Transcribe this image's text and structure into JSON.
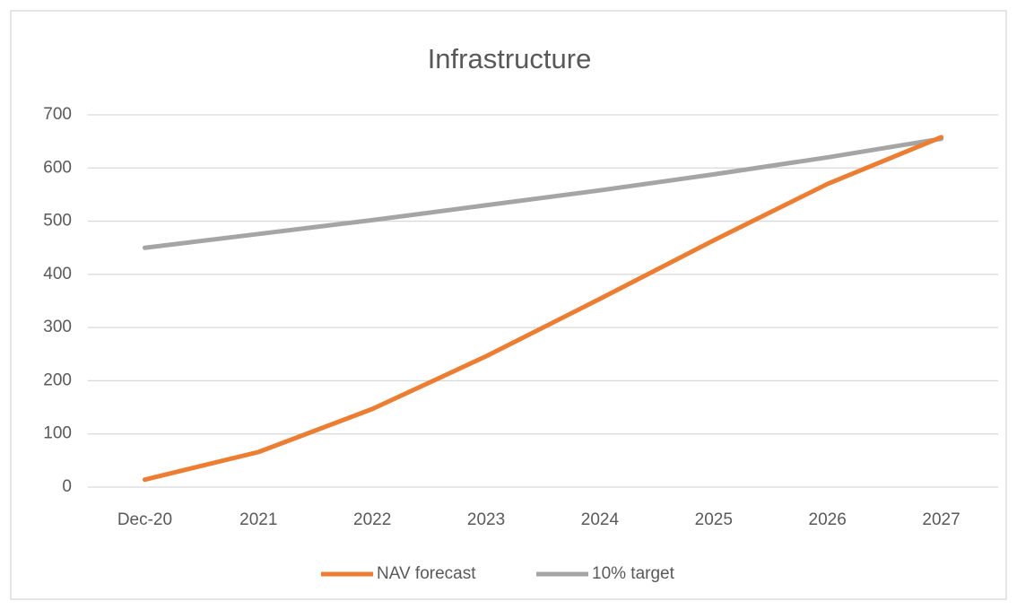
{
  "chart_data": {
    "type": "line",
    "title": "Infrastructure",
    "categories": [
      "Dec-20",
      "2021",
      "2022",
      "2023",
      "2024",
      "2025",
      "2026",
      "2027"
    ],
    "series": [
      {
        "name": "NAV forecast",
        "color": "#ed7d31",
        "values": [
          14,
          66,
          147,
          246,
          354,
          464,
          570,
          658
        ]
      },
      {
        "name": "10% target",
        "color": "#a5a5a5",
        "values": [
          450,
          476,
          502,
          530,
          558,
          588,
          620,
          655
        ]
      }
    ],
    "ylim": [
      0,
      700
    ],
    "yticks": [
      0,
      100,
      200,
      300,
      400,
      500,
      600,
      700
    ],
    "grid": true,
    "legend": "bottom"
  }
}
